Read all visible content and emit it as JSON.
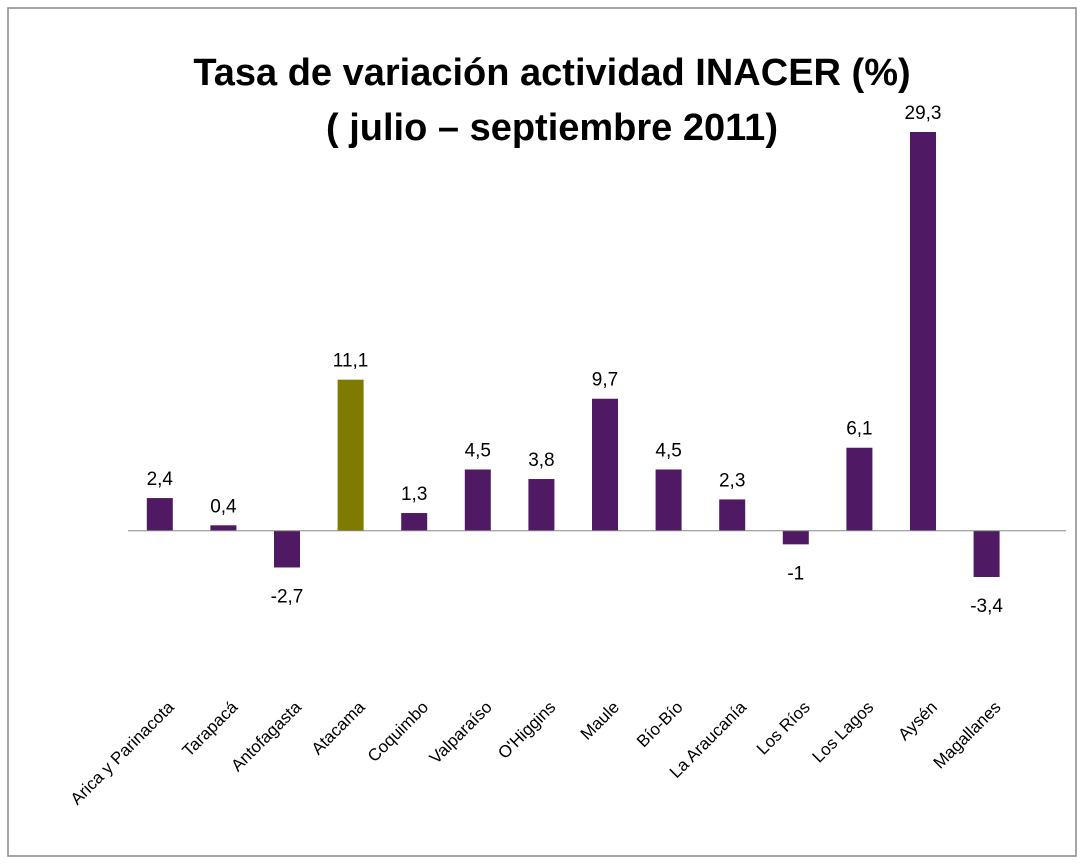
{
  "chart_data": {
    "type": "bar",
    "title": [
      "Tasa de variación actividad INACER (%)",
      "( julio – septiembre 2011)"
    ],
    "categories": [
      "Arica y Parinacota",
      "Tarapacá",
      "Antofagasta",
      "Atacama",
      "Coquimbo",
      "Valparaíso",
      "O'Higgins",
      "Maule",
      "Bío-Bío",
      "La Araucanía",
      "Los Ríos",
      "Los Lagos",
      "Aysén",
      "Magallanes"
    ],
    "values": [
      2.4,
      0.4,
      -2.7,
      11.1,
      1.3,
      4.5,
      3.8,
      9.7,
      4.5,
      2.3,
      -1,
      6.1,
      29.3,
      -3.4
    ],
    "value_labels": [
      "2,4",
      "0,4",
      "-2,7",
      "11,1",
      "1,3",
      "4,5",
      "3,8",
      "9,7",
      "4,5",
      "2,3",
      "-1",
      "6,1",
      "29,3",
      "-3,4"
    ],
    "colors": [
      "#4f1a63",
      "#4f1a63",
      "#4f1a63",
      "#7f7a00",
      "#4f1a63",
      "#4f1a63",
      "#4f1a63",
      "#4f1a63",
      "#4f1a63",
      "#4f1a63",
      "#4f1a63",
      "#4f1a63",
      "#4f1a63",
      "#4f1a63"
    ]
  }
}
